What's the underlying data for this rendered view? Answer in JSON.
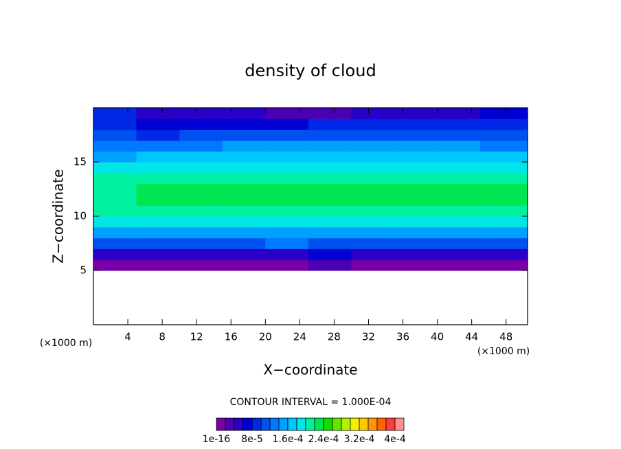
{
  "chart_data": {
    "type": "contour",
    "title": "density of cloud",
    "xlabel": "X−coordinate",
    "ylabel": "Z−coordinate",
    "x_unit_left": "(×1000 m)",
    "x_unit_right": "(×1000 m)",
    "xlim": [
      0,
      50.5
    ],
    "ylim": [
      0,
      20
    ],
    "xticks": [
      4,
      8,
      12,
      16,
      20,
      24,
      28,
      32,
      36,
      40,
      44,
      48
    ],
    "yticks": [
      5,
      10,
      15
    ],
    "x": [
      2.5,
      7.5,
      12.5,
      17.5,
      22.5,
      27.5,
      32.5,
      37.5,
      42.5,
      47.5
    ],
    "y": [
      5.5,
      6.5,
      7.5,
      8.5,
      9.5,
      10.5,
      11.5,
      12.5,
      13.5,
      14.5,
      15.5,
      16.5,
      17.5,
      18.5,
      19.5
    ],
    "z": [
      [
        1e-05,
        1e-05,
        1e-05,
        1.5e-05,
        1e-05,
        2e-05,
        1e-05,
        1e-05,
        1.5e-05,
        1e-05
      ],
      [
        5e-05,
        4.5e-05,
        4e-05,
        5e-05,
        4.5e-05,
        6e-05,
        5e-05,
        5e-05,
        5e-05,
        4.5e-05
      ],
      [
        0.00011,
        0.00011,
        0.000115,
        0.00011,
        0.00012,
        0.00011,
        0.00011,
        0.00011,
        0.00011,
        0.00011
      ],
      [
        0.000145,
        0.00015,
        0.00015,
        0.000155,
        0.000155,
        0.000155,
        0.000155,
        0.00015,
        0.00015,
        0.000145
      ],
      [
        0.000185,
        0.00019,
        0.000195,
        0.000195,
        0.000195,
        0.000195,
        0.000195,
        0.000195,
        0.00019,
        0.00019
      ],
      [
        0.000205,
        0.00021,
        0.000215,
        0.000215,
        0.000215,
        0.000215,
        0.000215,
        0.000215,
        0.000215,
        0.00021
      ],
      [
        0.000215,
        0.00022,
        0.000225,
        0.00023,
        0.00023,
        0.00023,
        0.00023,
        0.00023,
        0.000225,
        0.00022
      ],
      [
        0.000215,
        0.00022,
        0.000225,
        0.00023,
        0.00023,
        0.00023,
        0.00023,
        0.00023,
        0.000225,
        0.00022
      ],
      [
        0.000205,
        0.00021,
        0.000215,
        0.000215,
        0.000215,
        0.000215,
        0.000215,
        0.000215,
        0.000215,
        0.00021
      ],
      [
        0.00018,
        0.000185,
        0.00019,
        0.000195,
        0.000195,
        0.000195,
        0.000195,
        0.000195,
        0.00019,
        0.000185
      ],
      [
        0.000155,
        0.00016,
        0.000165,
        0.00017,
        0.00017,
        0.00017,
        0.00017,
        0.00017,
        0.000165,
        0.00016
      ],
      [
        0.00013,
        0.00013,
        0.000135,
        0.00014,
        0.000145,
        0.000145,
        0.000145,
        0.000145,
        0.00014,
        0.000135
      ],
      [
        0.0001,
        9.5e-05,
        0.000105,
        0.00011,
        0.000115,
        0.000115,
        0.000115,
        0.000115,
        0.00011,
        0.000105
      ],
      [
        8e-05,
        7e-05,
        7e-05,
        7e-05,
        7.5e-05,
        8e-05,
        8.5e-05,
        8.5e-05,
        8.5e-05,
        8e-05
      ],
      [
        8e-05,
        5e-05,
        4.5e-05,
        4e-05,
        3.5e-05,
        3.5e-05,
        4e-05,
        5e-05,
        5.5e-05,
        6e-05
      ]
    ],
    "contour_interval_label": "CONTOUR INTERVAL = 1.000E-04",
    "clim": [
      0,
      0.00042
    ],
    "colors": [
      "#7800a8",
      "#4b00b4",
      "#2800c8",
      "#0000d2",
      "#0028e6",
      "#0050f0",
      "#0078ff",
      "#00a0ff",
      "#00c8ff",
      "#00e6e6",
      "#00f0a0",
      "#00e650",
      "#14dc00",
      "#64e600",
      "#b4f000",
      "#f0f000",
      "#ffc800",
      "#ff9600",
      "#ff6400",
      "#ff3c3c",
      "#ff9090"
    ],
    "colorbar_ticks": [
      {
        "value": 1e-16,
        "label": "1e-16"
      },
      {
        "value": 8e-05,
        "label": "8e-5"
      },
      {
        "value": 0.00016,
        "label": "1.6e-4"
      },
      {
        "value": 0.00024,
        "label": "2.4e-4"
      },
      {
        "value": 0.00032,
        "label": "3.2e-4"
      },
      {
        "value": 0.0004,
        "label": "4e-4"
      }
    ]
  }
}
